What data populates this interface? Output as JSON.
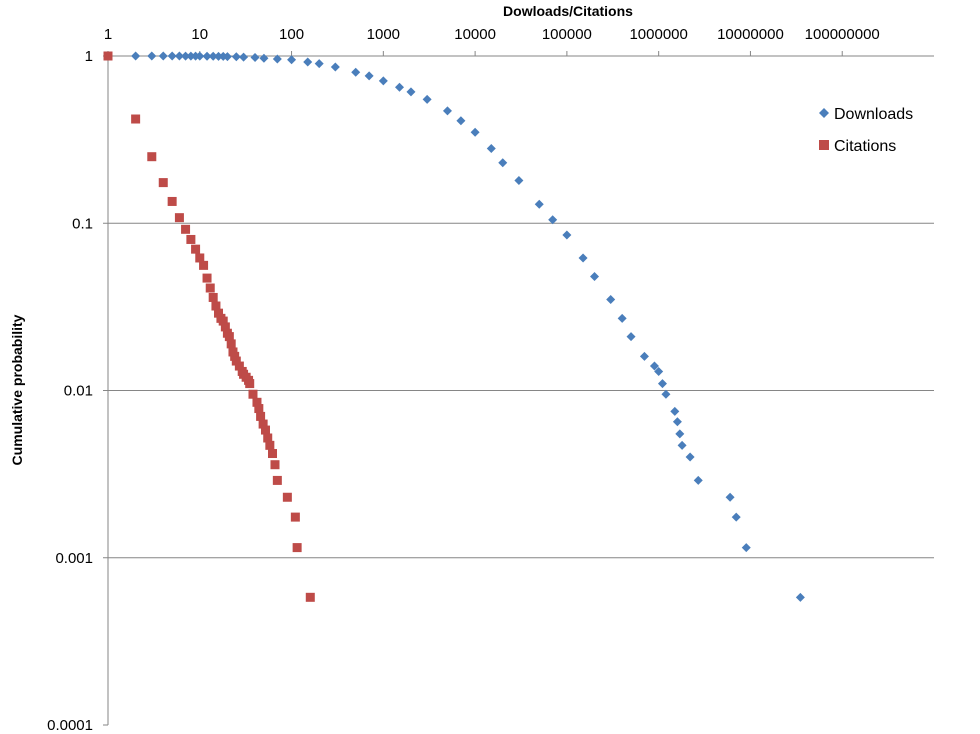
{
  "chart_data": {
    "type": "scatter",
    "title": "",
    "xlabel": "Dowloads/Citations",
    "ylabel": "Cumulative probability",
    "x_scale": "log",
    "y_scale": "log",
    "xlim": [
      1,
      1000000000
    ],
    "ylim": [
      0.0001,
      1
    ],
    "x_ticks": [
      "1",
      "10",
      "100",
      "1000",
      "10000",
      "100000",
      "1000000",
      "10000000",
      "100000000"
    ],
    "y_ticks": [
      "1",
      "0.1",
      "0.01",
      "0.001",
      "0.0001"
    ],
    "grid": "horizontal",
    "legend_position": "right",
    "series": [
      {
        "name": "Downloads",
        "marker": "diamond",
        "color": "#4a7ebb",
        "x": [
          1,
          2,
          3,
          4,
          5,
          6,
          7,
          8,
          9,
          10,
          12,
          14,
          16,
          18,
          20,
          25,
          30,
          40,
          50,
          70,
          100,
          150,
          200,
          300,
          500,
          700,
          1000,
          1500,
          2000,
          3000,
          5000,
          7000,
          10000,
          15000,
          20000,
          30000,
          50000,
          70000,
          100000,
          150000,
          200000,
          300000,
          400000,
          500000,
          700000,
          900000,
          1000000,
          1100000,
          1200000,
          1500000,
          1600000,
          1700000,
          1800000,
          2200000,
          2700000,
          6000000,
          7000000,
          9000000,
          35000000
        ],
        "y": [
          1,
          1,
          1,
          1,
          1,
          1,
          0.999,
          0.999,
          0.998,
          0.998,
          0.997,
          0.996,
          0.995,
          0.994,
          0.992,
          0.99,
          0.985,
          0.98,
          0.97,
          0.96,
          0.95,
          0.92,
          0.9,
          0.86,
          0.8,
          0.76,
          0.71,
          0.65,
          0.61,
          0.55,
          0.47,
          0.41,
          0.35,
          0.28,
          0.23,
          0.18,
          0.13,
          0.105,
          0.085,
          0.062,
          0.048,
          0.035,
          0.027,
          0.021,
          0.016,
          0.014,
          0.013,
          0.011,
          0.0095,
          0.0075,
          0.0065,
          0.0055,
          0.0047,
          0.004,
          0.0029,
          0.0023,
          0.00175,
          0.00115,
          0.00058
        ]
      },
      {
        "name": "Citations",
        "marker": "square",
        "color": "#be4b48",
        "x": [
          1,
          2,
          3,
          4,
          5,
          6,
          7,
          8,
          9,
          10,
          11,
          12,
          13,
          14,
          15,
          16,
          17,
          18,
          19,
          20,
          21,
          22,
          23,
          24,
          25,
          27,
          29,
          30,
          32,
          34,
          35,
          38,
          42,
          44,
          46,
          49,
          52,
          55,
          58,
          62,
          66,
          70,
          90,
          110,
          115,
          160
        ],
        "y": [
          1,
          0.42,
          0.25,
          0.175,
          0.135,
          0.108,
          0.092,
          0.08,
          0.07,
          0.062,
          0.056,
          0.047,
          0.041,
          0.036,
          0.032,
          0.029,
          0.027,
          0.026,
          0.024,
          0.022,
          0.021,
          0.019,
          0.017,
          0.016,
          0.015,
          0.014,
          0.013,
          0.0125,
          0.012,
          0.0115,
          0.011,
          0.0095,
          0.0085,
          0.0078,
          0.007,
          0.0063,
          0.0058,
          0.0052,
          0.0047,
          0.0042,
          0.0036,
          0.0029,
          0.0023,
          0.00175,
          0.00115,
          0.00058
        ]
      }
    ]
  }
}
